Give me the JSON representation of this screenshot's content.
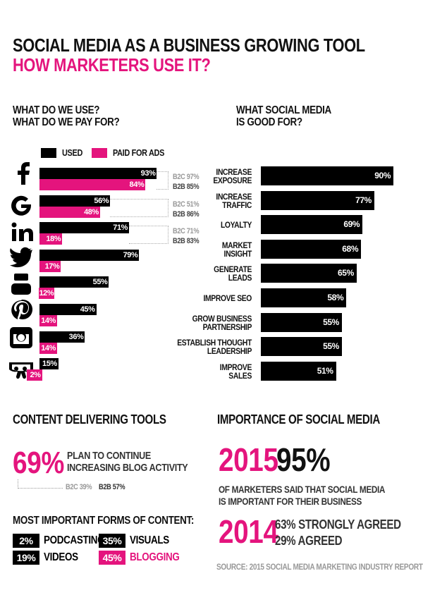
{
  "header": {
    "title": "SOCIAL MEDIA AS A BUSINESS GROWING TOOL",
    "subtitle": "HOW MARKETERS USE IT?"
  },
  "chart_data": [
    {
      "type": "bar",
      "orientation": "horizontal",
      "title": "WHAT DO WE USE?\nWHAT DO WE PAY FOR?",
      "categories": [
        null,
        null,
        null,
        null,
        null,
        null,
        null,
        null
      ],
      "series": [
        {
          "name": "USED",
          "color": "#000000",
          "values": [
            93,
            56,
            71,
            79,
            55,
            45,
            36,
            15
          ],
          "value_labels": [
            "93%",
            "56%",
            "71%",
            "79%",
            "55%",
            "45%",
            "36%",
            "15%"
          ]
        },
        {
          "name": "PAID FOR ADS",
          "color": "#e4147d",
          "values": [
            84,
            48,
            18,
            17,
            12,
            14,
            14,
            2
          ],
          "value_labels": [
            "84%",
            "48%",
            "18%",
            "17%",
            "12%",
            "14%",
            "14%",
            "2%"
          ]
        }
      ],
      "xlim": [
        0,
        100
      ],
      "annotations": [
        {
          "b2c": "B2C 97%",
          "b2b": "B2B 85%"
        },
        {
          "b2c": "B2C 51%",
          "b2b": "B2B 86%"
        },
        {
          "b2c": "B2C 71%",
          "b2b": "B2B 83%"
        }
      ]
    },
    {
      "type": "bar",
      "orientation": "horizontal",
      "title": "WHAT SOCIAL MEDIA\nIS GOOD FOR?",
      "categories": [
        "INCREASE\nEXPOSURE",
        "INCREASE\nTRAFFIC",
        "LOYALTY",
        "MARKET\nINSIGHT",
        "GENERATE\nLEADS",
        "IMPROVE SEO",
        "GROW BUSINESS\nPARTNERSHIP",
        "ESTABLISH THOUGHT\nLEADERSHIP",
        "IMPROVE\nSALES"
      ],
      "values": [
        90,
        77,
        69,
        68,
        65,
        58,
        55,
        55,
        51
      ],
      "value_labels": [
        "90%",
        "77%",
        "69%",
        "68%",
        "65%",
        "58%",
        "55%",
        "55%",
        "51%"
      ],
      "color": "#000000",
      "xlim": [
        0,
        100
      ]
    }
  ],
  "content_tools": {
    "title": "CONTENT DELIVERING TOOLS",
    "stat": "69%",
    "stat_text": "PLAN TO CONTINUE\nINCREASING BLOG ACTIVITY",
    "b2c": "B2C 39%",
    "b2b": "B2B 57%",
    "forms_title": "MOST IMPORTANT FORMS OF CONTENT:",
    "forms": [
      {
        "value": "2%",
        "label": "PODCASTING",
        "color": "#000000"
      },
      {
        "value": "19%",
        "label": "VIDEOS",
        "color": "#000000"
      },
      {
        "value": "35%",
        "label": "VISUALS",
        "color": "#000000"
      },
      {
        "value": "45%",
        "label": "BLOGGING",
        "color": "#e4147d"
      }
    ]
  },
  "importance": {
    "title": "IMPORTANCE OF SOCIAL MEDIA",
    "year_current": "2015",
    "value_current": "95%",
    "text": "OF MARKETERS SAID THAT SOCIAL MEDIA\nIS IMPORTANT FOR THEIR BUSINESS",
    "year_previous": "2014",
    "details": [
      "63% STRONGLY AGREED",
      "29% AGREED"
    ],
    "source": "SOURCE: 2015 SOCIAL MEDIA MARKETING INDUSTRY REPORT"
  }
}
